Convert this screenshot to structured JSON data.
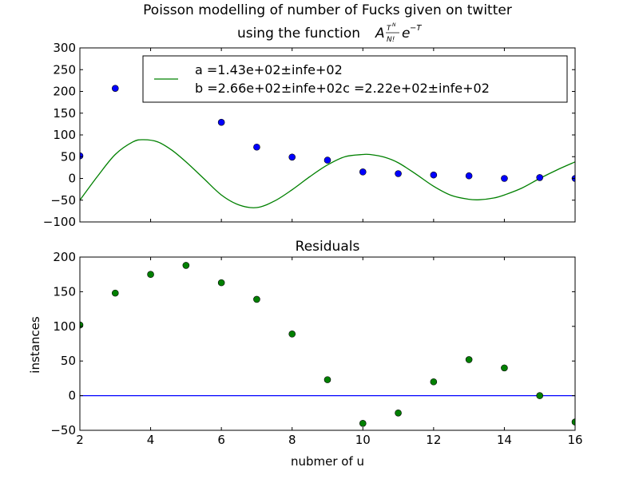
{
  "chart_data": [
    {
      "type": "scatter",
      "title_line1": "Poisson modelling of number of Fucks given on twitter",
      "title_line2": "using the function",
      "title_formula": "A T^N / N! e^{-T}",
      "xlim": [
        2,
        16
      ],
      "ylim": [
        -100,
        300
      ],
      "yticks": [
        -100,
        -50,
        0,
        50,
        100,
        150,
        200,
        250,
        300
      ],
      "yticklabels": [
        "−100",
        "−50",
        "0",
        "50",
        "100",
        "150",
        "200",
        "250",
        "300"
      ],
      "series": [
        {
          "kind": "points",
          "color": "#0000ff",
          "x": [
            2,
            3,
            6,
            7,
            8,
            9,
            10,
            11,
            12,
            13,
            14,
            15,
            16
          ],
          "y": [
            52,
            207,
            129,
            72,
            49,
            42,
            15,
            11,
            8,
            6,
            0,
            2,
            0
          ]
        },
        {
          "kind": "line",
          "color": "#008000",
          "x": [
            2,
            2.5,
            3,
            3.5,
            3.8,
            4.2,
            4.6,
            5,
            5.5,
            6,
            6.5,
            7,
            7.5,
            8,
            8.5,
            9,
            9.5,
            10,
            10.2,
            10.6,
            11,
            11.5,
            12,
            12.5,
            13,
            13.3,
            13.7,
            14,
            14.5,
            15,
            15.5,
            16
          ],
          "y": [
            -50,
            5,
            55,
            84,
            89,
            84,
            65,
            38,
            0,
            -38,
            -61,
            -67,
            -52,
            -26,
            4,
            31,
            50,
            55,
            55,
            49,
            36,
            10,
            -18,
            -39,
            -48,
            -49,
            -45,
            -38,
            -22,
            0,
            20,
            38
          ]
        }
      ],
      "legend": {
        "placement": "top-right",
        "line1": "a =1.43e+02±infe+02",
        "line2": "b =2.66e+02±infe+02c =2.22e+02±infe+02"
      }
    },
    {
      "type": "scatter",
      "title": "Residuals",
      "xlabel": "nubmer of u",
      "ylabel": "instances",
      "xlim": [
        2,
        16
      ],
      "ylim": [
        -50,
        200
      ],
      "xticks": [
        2,
        4,
        6,
        8,
        10,
        12,
        14,
        16
      ],
      "xticklabels": [
        "2",
        "4",
        "6",
        "8",
        "10",
        "12",
        "14",
        "16"
      ],
      "yticks": [
        -50,
        0,
        50,
        100,
        150,
        200
      ],
      "yticklabels": [
        "−50",
        "0",
        "50",
        "100",
        "150",
        "200"
      ],
      "series": [
        {
          "kind": "points",
          "color": "#008000",
          "x": [
            2,
            3,
            4,
            5,
            6,
            7,
            8,
            9,
            10,
            11,
            12,
            13,
            14,
            15,
            16
          ],
          "y": [
            102,
            148,
            175,
            188,
            163,
            139,
            89,
            23,
            -40,
            -25,
            20,
            52,
            40,
            0,
            -38
          ]
        },
        {
          "kind": "hline",
          "color": "#0000ff",
          "y": 0
        }
      ]
    }
  ]
}
